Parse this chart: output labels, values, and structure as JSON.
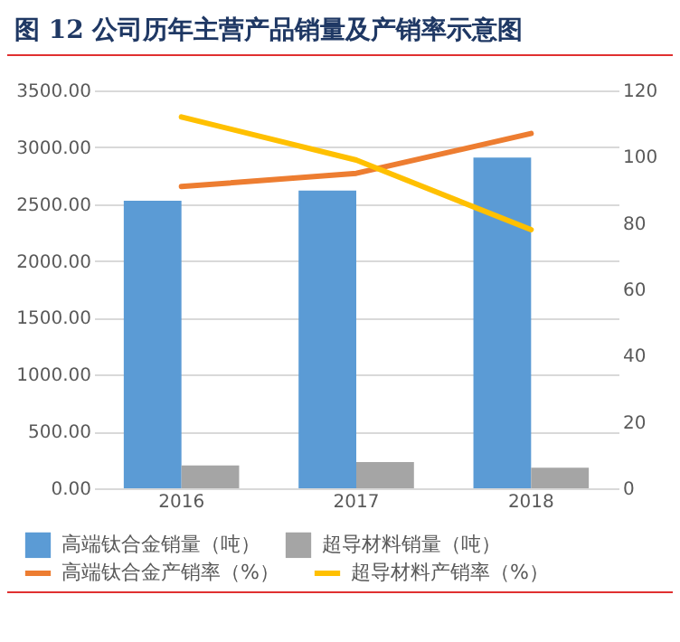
{
  "chart_data": {
    "type": "bar",
    "title": "图 12 公司历年主营产品销量及产销率示意图",
    "categories": [
      "2016",
      "2017",
      "2018"
    ],
    "series": [
      {
        "name": "高端钛合金销量（吨）",
        "color": "#5b9bd5",
        "values": [
          2530,
          2620,
          2910
        ]
      },
      {
        "name": "超导材料销量（吨）",
        "color": "#a5a5a5",
        "values": [
          200,
          230,
          180
        ]
      },
      {
        "name": "高端钛合金产销率（%）",
        "type": "line",
        "axis": "y2",
        "color": "#ed7d31",
        "values": [
          91,
          95,
          107
        ]
      },
      {
        "name": "超导材料产销率（%）",
        "type": "line",
        "axis": "y2",
        "color": "#ffc000",
        "values": [
          112,
          99,
          78
        ]
      }
    ],
    "ylim": [
      0,
      3500
    ],
    "yticks": [
      {
        "value": 0,
        "label": "0.00"
      },
      {
        "value": 500,
        "label": "500.00"
      },
      {
        "value": 1000,
        "label": "1000.00"
      },
      {
        "value": 1500,
        "label": "1500.00"
      },
      {
        "value": 2000,
        "label": "2000.00"
      },
      {
        "value": 2500,
        "label": "2500.00"
      },
      {
        "value": 3000,
        "label": "3000.00"
      },
      {
        "value": 3500,
        "label": "3500.00"
      }
    ],
    "y2lim": [
      0,
      120
    ],
    "y2ticks": [
      0,
      20,
      40,
      60,
      80,
      100,
      120
    ],
    "grid": "y",
    "legend": "bottom"
  }
}
